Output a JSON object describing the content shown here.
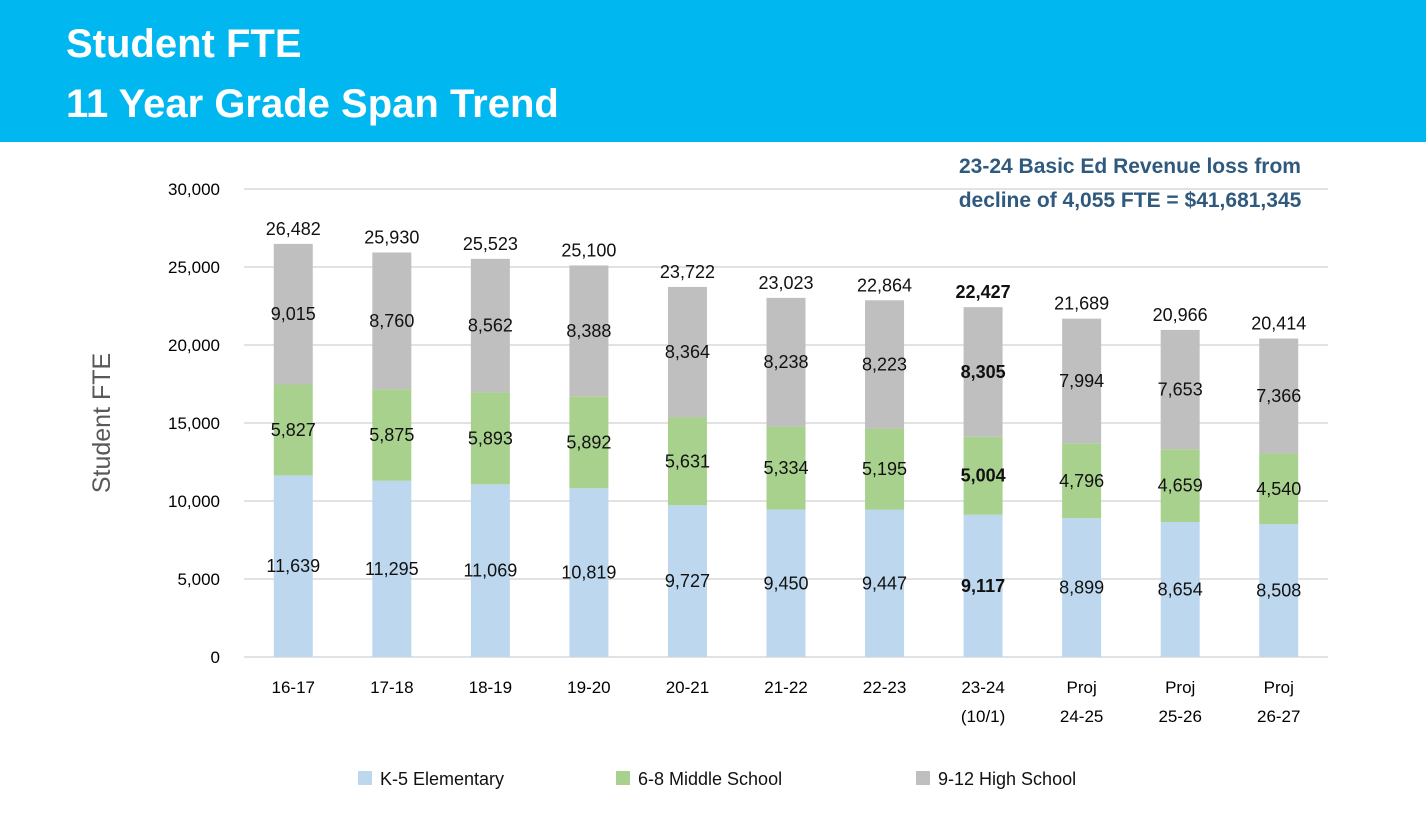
{
  "header": {
    "title_line1": "Student FTE",
    "title_line2": "11 Year Grade Span Trend",
    "background_color": "#00b8ef"
  },
  "annotation": {
    "line1": "23-24 Basic Ed Revenue loss from",
    "line2": "decline of 4,055 FTE = $41,681,345",
    "color": "#2f5a7d"
  },
  "chart_data": {
    "type": "bar",
    "stacked": true,
    "ylabel": "Student FTE",
    "ylim": [
      0,
      30000
    ],
    "yticks": [
      0,
      5000,
      10000,
      15000,
      20000,
      25000,
      30000
    ],
    "ytick_labels": [
      "0",
      "5,000",
      "10,000",
      "15,000",
      "20,000",
      "25,000",
      "30,000"
    ],
    "grid": true,
    "legend_position": "bottom",
    "categories": [
      "16-17",
      "17-18",
      "18-19",
      "19-20",
      "20-21",
      "21-22",
      "22-23",
      "23-24 (10/1)",
      "Proj 24-25",
      "Proj 25-26",
      "Proj 26-27"
    ],
    "category_label_lines": [
      [
        "16-17"
      ],
      [
        "17-18"
      ],
      [
        "18-19"
      ],
      [
        "19-20"
      ],
      [
        "20-21"
      ],
      [
        "21-22"
      ],
      [
        "22-23"
      ],
      [
        "23-24",
        "(10/1)"
      ],
      [
        "Proj",
        "24-25"
      ],
      [
        "Proj",
        "25-26"
      ],
      [
        "Proj",
        "26-27"
      ]
    ],
    "series": [
      {
        "name": "K-5 Elementary",
        "color": "#bdd7ee",
        "values": [
          11639,
          11295,
          11069,
          10819,
          9727,
          9450,
          9447,
          9117,
          8899,
          8654,
          8508
        ],
        "labels": [
          "11,639",
          "11,295",
          "11,069",
          "10,819",
          "9,727",
          "9,450",
          "9,447",
          "9,117",
          "8,899",
          "8,654",
          "8,508"
        ]
      },
      {
        "name": "6-8 Middle School",
        "color": "#a9d18e",
        "values": [
          5827,
          5875,
          5893,
          5892,
          5631,
          5334,
          5195,
          5004,
          4796,
          4659,
          4540
        ],
        "labels": [
          "5,827",
          "5,875",
          "5,893",
          "5,892",
          "5,631",
          "5,334",
          "5,195",
          "5,004",
          "4,796",
          "4,659",
          "4,540"
        ]
      },
      {
        "name": "9-12 High School",
        "color": "#bfbfbf",
        "values": [
          9015,
          8760,
          8562,
          8388,
          8364,
          8238,
          8223,
          8305,
          7994,
          7653,
          7366
        ],
        "labels": [
          "9,015",
          "8,760",
          "8,562",
          "8,388",
          "8,364",
          "8,238",
          "8,223",
          "8,305",
          "7,994",
          "7,653",
          "7,366"
        ]
      }
    ],
    "totals": [
      26482,
      25930,
      25523,
      25100,
      23722,
      23023,
      22864,
      22427,
      21689,
      20966,
      20414
    ],
    "total_labels": [
      "26,482",
      "25,930",
      "25,523",
      "25,100",
      "23,722",
      "23,023",
      "22,864",
      "22,427",
      "21,689",
      "20,966",
      "20,414"
    ],
    "bold_category_index": 7
  }
}
